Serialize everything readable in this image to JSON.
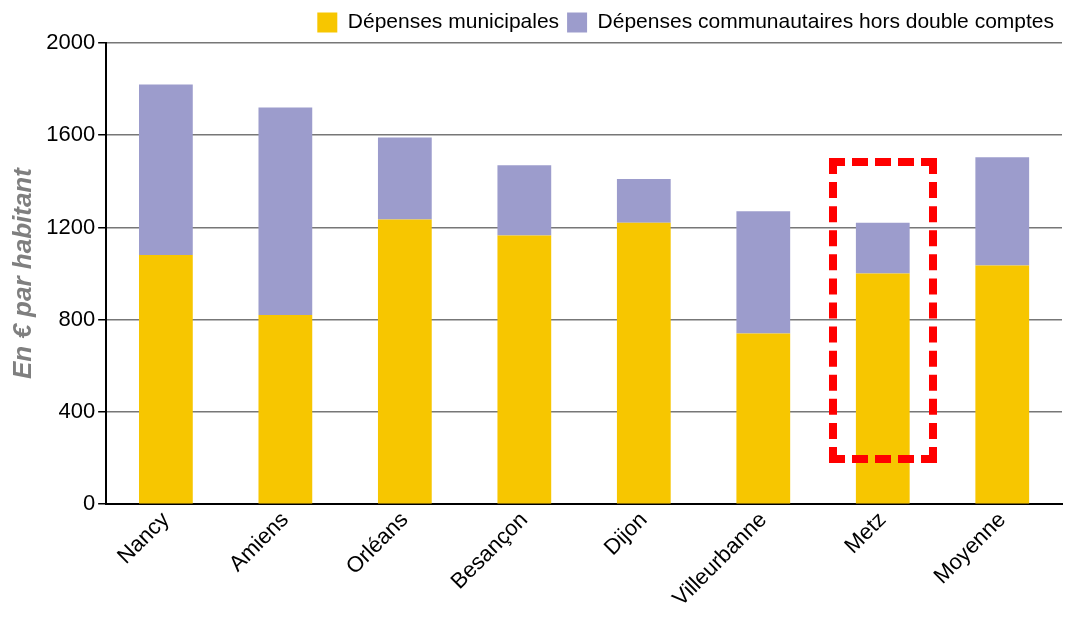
{
  "chart_data": {
    "type": "bar",
    "stacked": true,
    "ylabel": "En € par habitant",
    "categories": [
      "Nancy",
      "Amiens",
      "Orléans",
      "Besançon",
      "Dijon",
      "Villeurbanne",
      "Metz",
      "Moyenne"
    ],
    "series": [
      {
        "name": "Dépenses municipales",
        "color": "#f7c600",
        "values": [
          1080,
          820,
          1235,
          1165,
          1220,
          740,
          1000,
          1035
        ]
      },
      {
        "name": "Dépenses communautaires hors double comptes",
        "color": "#9c9ccc",
        "values": [
          740,
          900,
          355,
          305,
          190,
          530,
          220,
          470
        ]
      }
    ],
    "ylim": [
      0,
      2000
    ],
    "yticks": [
      0,
      400,
      800,
      1200,
      1600,
      2000
    ],
    "grid": "y",
    "legend": "top"
  }
}
